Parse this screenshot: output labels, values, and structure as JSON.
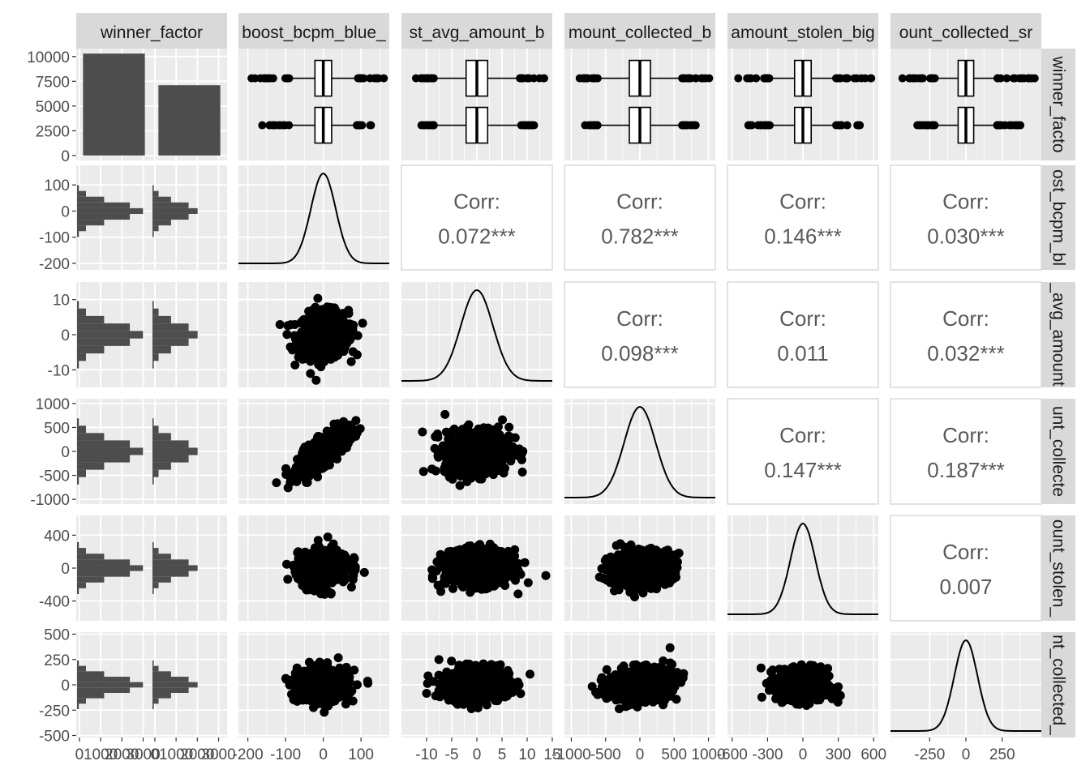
{
  "chart_data": {
    "type": "pairs",
    "variables": [
      "winner_factor",
      "boost_bcpm_blue_big",
      "boost_avg_amount_big",
      "amount_collected_big",
      "amount_stolen_big",
      "amount_collected_small"
    ],
    "column_strips": [
      "winner_factor",
      "boost_bcpm_blue_",
      "st_avg_amount_b",
      "mount_collected_b",
      "amount_stolen_big",
      "ount_collected_sr"
    ],
    "row_strips": [
      "winner_facto",
      "ost_bcpm_bl",
      "_avg_amount",
      "unt_collecte",
      "ount_stolen_",
      "nt_collected_"
    ],
    "winner_factor_counts": [
      10300,
      7100
    ],
    "axes": {
      "row_ticks": [
        {
          "labels": [
            "0",
            "2500",
            "5000",
            "7500",
            "10000"
          ],
          "values": [
            0,
            2500,
            5000,
            7500,
            10000
          ],
          "range": [
            -500,
            10800
          ]
        },
        {
          "labels": [
            "-200",
            "-100",
            "0",
            "100"
          ],
          "values": [
            -200,
            -100,
            0,
            100
          ],
          "range": [
            -225,
            175
          ]
        },
        {
          "labels": [
            "-10",
            "0",
            "10"
          ],
          "values": [
            -10,
            0,
            10
          ],
          "range": [
            -15,
            15
          ]
        },
        {
          "labels": [
            "-1000",
            "-500",
            "0",
            "500",
            "1000"
          ],
          "values": [
            -1000,
            -500,
            0,
            500,
            1000
          ],
          "range": [
            -1100,
            1100
          ]
        },
        {
          "labels": [
            "-400",
            "0",
            "400"
          ],
          "values": [
            -400,
            0,
            400
          ],
          "range": [
            -640,
            640
          ]
        },
        {
          "labels": [
            "-500",
            "-250",
            "0",
            "250",
            "500"
          ],
          "values": [
            -500,
            -250,
            0,
            250,
            500
          ],
          "range": [
            -520,
            520
          ]
        }
      ],
      "col_ticks": [
        {
          "labels": [
            "0",
            "1000",
            "2000",
            "3000"
          ],
          "values": [
            0,
            1000,
            2000,
            3000
          ],
          "range": [
            -150,
            3400
          ],
          "repeat": 2
        },
        {
          "labels": [
            "-200",
            "-100",
            "0",
            "100"
          ],
          "values": [
            -200,
            -100,
            0,
            100
          ],
          "range": [
            -225,
            175
          ]
        },
        {
          "labels": [
            "-10",
            "-5",
            "0",
            "5",
            "10",
            "15"
          ],
          "values": [
            -10,
            -5,
            0,
            5,
            10,
            15
          ],
          "range": [
            -15,
            15
          ]
        },
        {
          "labels": [
            "-1000",
            "-500",
            "0",
            "500",
            "1000"
          ],
          "values": [
            -1000,
            -500,
            0,
            500,
            1000
          ],
          "range": [
            -1100,
            1100
          ]
        },
        {
          "labels": [
            "-600",
            "-300",
            "0",
            "300",
            "600"
          ],
          "values": [
            -600,
            -300,
            0,
            300,
            600
          ],
          "range": [
            -640,
            640
          ]
        },
        {
          "labels": [
            "-250",
            "0",
            "250"
          ],
          "values": [
            -250,
            0,
            250
          ],
          "range": [
            -520,
            520
          ]
        }
      ]
    },
    "correlations": [
      {
        "row": 1,
        "col": 2,
        "label": "Corr:",
        "value": "0.072***"
      },
      {
        "row": 1,
        "col": 3,
        "label": "Corr:",
        "value": "0.782***"
      },
      {
        "row": 1,
        "col": 4,
        "label": "Corr:",
        "value": "0.146***"
      },
      {
        "row": 1,
        "col": 5,
        "label": "Corr:",
        "value": "0.030***"
      },
      {
        "row": 2,
        "col": 3,
        "label": "Corr:",
        "value": "0.098***"
      },
      {
        "row": 2,
        "col": 4,
        "label": "Corr:",
        "value": "0.011"
      },
      {
        "row": 2,
        "col": 5,
        "label": "Corr:",
        "value": "0.032***"
      },
      {
        "row": 3,
        "col": 4,
        "label": "Corr:",
        "value": "0.147***"
      },
      {
        "row": 3,
        "col": 5,
        "label": "Corr:",
        "value": "0.187***"
      },
      {
        "row": 4,
        "col": 5,
        "label": "Corr:",
        "value": "0.007"
      }
    ],
    "distributions": {
      "boost_bcpm_blue_big": {
        "mean": 0,
        "sd": 33
      },
      "boost_avg_amount_big": {
        "mean": 0,
        "sd": 3.2
      },
      "amount_collected_big": {
        "mean": 0,
        "sd": 230
      },
      "amount_stolen_big": {
        "mean": 0,
        "sd": 105
      },
      "amount_collected_small": {
        "mean": 0,
        "sd": 80
      }
    },
    "colors": {
      "panel": "#ebebeb",
      "strip": "#d9d9d9",
      "ink": "#000000",
      "bar": "#4d4d4d"
    }
  }
}
